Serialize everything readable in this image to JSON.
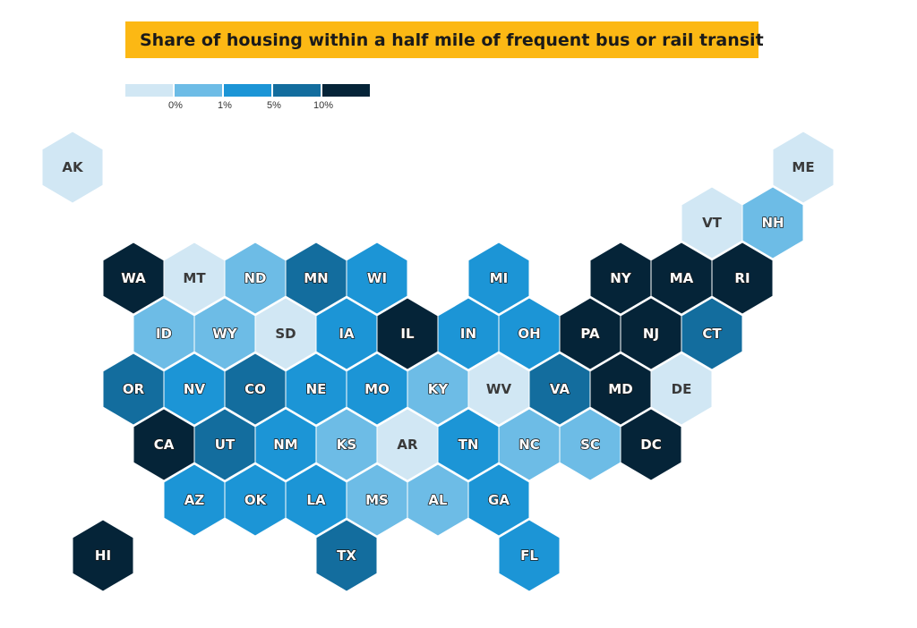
{
  "dropdown": {
    "label": "Share of housing within a half mile of frequent bus or rail transit",
    "icon": "chevron-down-icon"
  },
  "legend": {
    "colors": [
      "#d1e7f4",
      "#6dbce6",
      "#1c95d6",
      "#136d9e",
      "#052438"
    ],
    "ticks": [
      "0%",
      "1%",
      "5%",
      "10%"
    ]
  },
  "colors": {
    "accent": "#fcb814",
    "label_outline": "#1a1a1a",
    "label_dark": "#3a3a3a"
  },
  "states": [
    {
      "abbr": "AK",
      "row": 0,
      "col": 0,
      "bin": 0
    },
    {
      "abbr": "ME",
      "row": 0,
      "col": 12,
      "bin": 0
    },
    {
      "abbr": "VT",
      "row": 1,
      "col": 10,
      "bin": 0
    },
    {
      "abbr": "NH",
      "row": 1,
      "col": 11,
      "bin": 1
    },
    {
      "abbr": "WA",
      "row": 2,
      "col": 1,
      "bin": 4
    },
    {
      "abbr": "MT",
      "row": 2,
      "col": 2,
      "bin": 0
    },
    {
      "abbr": "ND",
      "row": 2,
      "col": 3,
      "bin": 1
    },
    {
      "abbr": "MN",
      "row": 2,
      "col": 4,
      "bin": 3
    },
    {
      "abbr": "WI",
      "row": 2,
      "col": 5,
      "bin": 2
    },
    {
      "abbr": "MI",
      "row": 2,
      "col": 7,
      "bin": 2
    },
    {
      "abbr": "NY",
      "row": 2,
      "col": 9,
      "bin": 4
    },
    {
      "abbr": "MA",
      "row": 2,
      "col": 10,
      "bin": 4
    },
    {
      "abbr": "RI",
      "row": 2,
      "col": 11,
      "bin": 4
    },
    {
      "abbr": "ID",
      "row": 3,
      "col": 1,
      "bin": 1
    },
    {
      "abbr": "WY",
      "row": 3,
      "col": 2,
      "bin": 1
    },
    {
      "abbr": "SD",
      "row": 3,
      "col": 3,
      "bin": 0
    },
    {
      "abbr": "IA",
      "row": 3,
      "col": 4,
      "bin": 2
    },
    {
      "abbr": "IL",
      "row": 3,
      "col": 5,
      "bin": 4
    },
    {
      "abbr": "IN",
      "row": 3,
      "col": 6,
      "bin": 2
    },
    {
      "abbr": "OH",
      "row": 3,
      "col": 7,
      "bin": 2
    },
    {
      "abbr": "PA",
      "row": 3,
      "col": 8,
      "bin": 4
    },
    {
      "abbr": "NJ",
      "row": 3,
      "col": 9,
      "bin": 4
    },
    {
      "abbr": "CT",
      "row": 3,
      "col": 10,
      "bin": 3
    },
    {
      "abbr": "OR",
      "row": 4,
      "col": 1,
      "bin": 3
    },
    {
      "abbr": "NV",
      "row": 4,
      "col": 2,
      "bin": 2
    },
    {
      "abbr": "CO",
      "row": 4,
      "col": 3,
      "bin": 3
    },
    {
      "abbr": "NE",
      "row": 4,
      "col": 4,
      "bin": 2
    },
    {
      "abbr": "MO",
      "row": 4,
      "col": 5,
      "bin": 2
    },
    {
      "abbr": "KY",
      "row": 4,
      "col": 6,
      "bin": 1
    },
    {
      "abbr": "WV",
      "row": 4,
      "col": 7,
      "bin": 0
    },
    {
      "abbr": "VA",
      "row": 4,
      "col": 8,
      "bin": 3
    },
    {
      "abbr": "MD",
      "row": 4,
      "col": 9,
      "bin": 4
    },
    {
      "abbr": "DE",
      "row": 4,
      "col": 10,
      "bin": 0
    },
    {
      "abbr": "CA",
      "row": 5,
      "col": 1,
      "bin": 4
    },
    {
      "abbr": "UT",
      "row": 5,
      "col": 2,
      "bin": 3
    },
    {
      "abbr": "NM",
      "row": 5,
      "col": 3,
      "bin": 2
    },
    {
      "abbr": "KS",
      "row": 5,
      "col": 4,
      "bin": 1
    },
    {
      "abbr": "AR",
      "row": 5,
      "col": 5,
      "bin": 0
    },
    {
      "abbr": "TN",
      "row": 5,
      "col": 6,
      "bin": 2
    },
    {
      "abbr": "NC",
      "row": 5,
      "col": 7,
      "bin": 1
    },
    {
      "abbr": "SC",
      "row": 5,
      "col": 8,
      "bin": 1
    },
    {
      "abbr": "DC",
      "row": 5,
      "col": 9,
      "bin": 4
    },
    {
      "abbr": "AZ",
      "row": 6,
      "col": 2,
      "bin": 2
    },
    {
      "abbr": "OK",
      "row": 6,
      "col": 3,
      "bin": 2
    },
    {
      "abbr": "LA",
      "row": 6,
      "col": 4,
      "bin": 2
    },
    {
      "abbr": "MS",
      "row": 6,
      "col": 5,
      "bin": 1
    },
    {
      "abbr": "AL",
      "row": 6,
      "col": 6,
      "bin": 1
    },
    {
      "abbr": "GA",
      "row": 6,
      "col": 7,
      "bin": 2
    },
    {
      "abbr": "HI",
      "row": 7,
      "col": 0,
      "bin": 4
    },
    {
      "abbr": "TX",
      "row": 7,
      "col": 4,
      "bin": 3
    },
    {
      "abbr": "FL",
      "row": 7,
      "col": 7,
      "bin": 2
    }
  ]
}
